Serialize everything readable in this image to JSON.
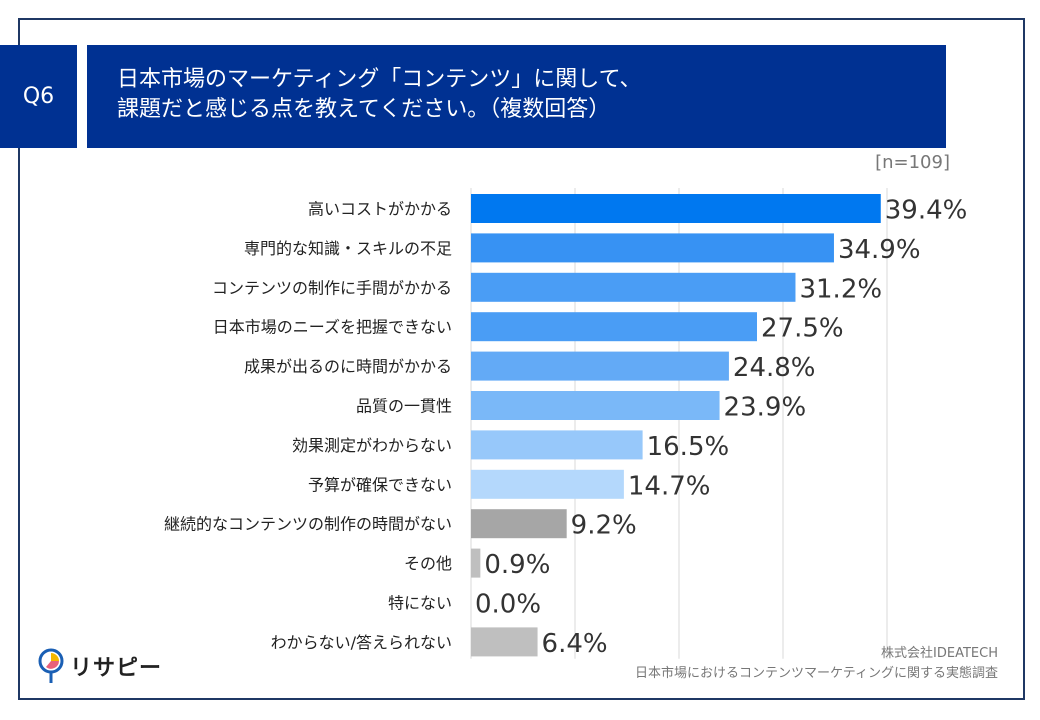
{
  "question": {
    "number": "Q6",
    "title_line1": "日本市場のマーケティング「コンテンツ」に関して、",
    "title_line2": "課題だと感じる点を教えてください。（複数回答）"
  },
  "sample": "[n=109]",
  "chart_data": {
    "type": "bar",
    "orientation": "horizontal",
    "categories": [
      "高いコストがかかる",
      "専門的な知識・スキルの不足",
      "コンテンツの制作に手間がかかる",
      "日本市場のニーズを把握できない",
      "成果が出るのに時間がかかる",
      "品質の一貫性",
      "効果測定がわからない",
      "予算が確保できない",
      "継続的なコンテンツの制作の時間がない",
      "その他",
      "特にない",
      "わからない/答えられない"
    ],
    "values": [
      39.4,
      34.9,
      31.2,
      27.5,
      24.8,
      23.9,
      16.5,
      14.7,
      9.2,
      0.9,
      0.0,
      6.4
    ],
    "data_labels": [
      "39.4%",
      "34.9%",
      "31.2%",
      "27.5%",
      "24.8%",
      "23.9%",
      "16.5%",
      "14.7%",
      "9.2%",
      "0.9%",
      "0.0%",
      "6.4%"
    ],
    "colors": [
      "#0078f0",
      "#3792f3",
      "#4a9df5",
      "#4a9df5",
      "#63aaf6",
      "#7ab8f8",
      "#97c8fa",
      "#b4d8fc",
      "#a6a6a6",
      "#bfbfbf",
      "#bfbfbf",
      "#bfbfbf"
    ],
    "xlim": [
      0,
      40
    ],
    "grid": true
  },
  "footer": {
    "company": "株式会社IDEATECH",
    "survey": "日本市場におけるコンテンツマーケティングに関する実態調査",
    "logo": "リサピー"
  }
}
